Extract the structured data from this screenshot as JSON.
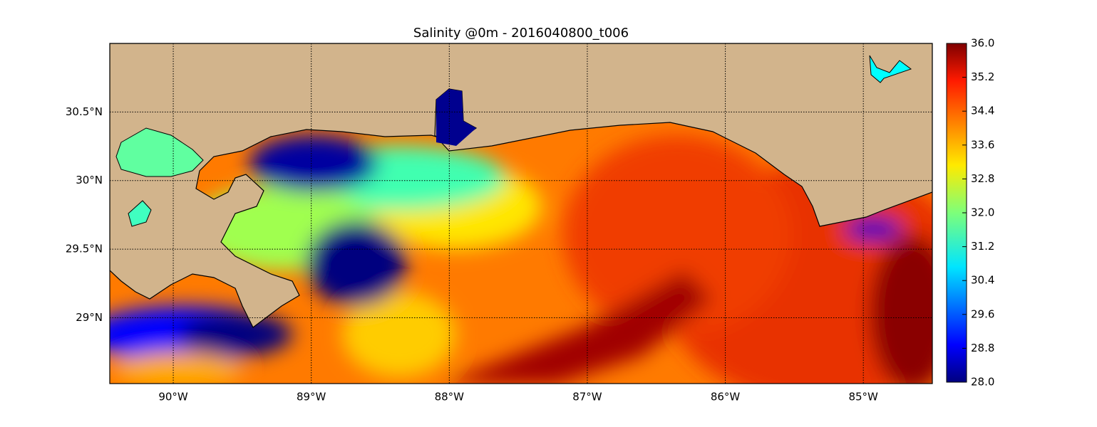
{
  "title": "Salinity @0m - 2016040800_t006",
  "map": {
    "xlim": [
      -90.46,
      -84.5
    ],
    "ylim": [
      28.52,
      31.0
    ],
    "grid": true,
    "xticks": [
      {
        "value": -90,
        "label": "90°W"
      },
      {
        "value": -89,
        "label": "89°W"
      },
      {
        "value": -88,
        "label": "88°W"
      },
      {
        "value": -87,
        "label": "87°W"
      },
      {
        "value": -86,
        "label": "86°W"
      },
      {
        "value": -85,
        "label": "85°W"
      }
    ],
    "yticks": [
      {
        "value": 29,
        "label": "29°N"
      },
      {
        "value": 29.5,
        "label": "29.5°N"
      },
      {
        "value": 30,
        "label": "30°N"
      },
      {
        "value": 30.5,
        "label": "30.5°N"
      }
    ]
  },
  "colorbar": {
    "range": [
      28,
      36
    ],
    "ticks": [
      {
        "value": 28,
        "label": "28.0"
      },
      {
        "value": 28.8,
        "label": "28.8"
      },
      {
        "value": 29.6,
        "label": "29.6"
      },
      {
        "value": 30.4,
        "label": "30.4"
      },
      {
        "value": 31.2,
        "label": "31.2"
      },
      {
        "value": 32,
        "label": "32.0"
      },
      {
        "value": 32.8,
        "label": "32.8"
      },
      {
        "value": 33.6,
        "label": "33.6"
      },
      {
        "value": 34.4,
        "label": "34.4"
      },
      {
        "value": 35.2,
        "label": "35.2"
      },
      {
        "value": 36,
        "label": "36.0"
      }
    ]
  }
}
